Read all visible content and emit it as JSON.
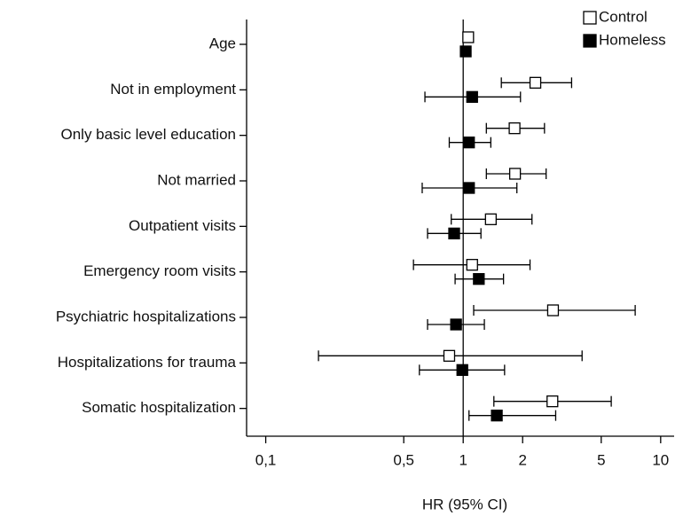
{
  "chart_data": {
    "type": "forest",
    "xlabel": "HR (95% CI)",
    "xscale": "log",
    "xlim": [
      0.08,
      11.7
    ],
    "xticks": [
      {
        "value": 0.1,
        "label": "0,1"
      },
      {
        "value": 0.5,
        "label": "0,5"
      },
      1,
      2,
      5,
      10
    ],
    "reference_line": 1,
    "legend": "upper right",
    "categories": [
      "Age",
      "Not in employment",
      "Only basic level education",
      "Not married",
      "Outpatient visits",
      "Emergency room visits",
      "Psychiatric hospitalizations",
      "Hospitalizations for trauma",
      "Somatic hospitalization"
    ],
    "series": [
      {
        "name": "Control",
        "color": "#ffffff",
        "values": [
          1.06,
          2.32,
          1.82,
          1.83,
          1.38,
          1.11,
          2.85,
          0.85,
          2.83
        ],
        "lower": [
          null,
          1.56,
          1.31,
          1.31,
          0.87,
          0.56,
          1.13,
          0.185,
          1.43
        ],
        "upper": [
          null,
          3.54,
          2.58,
          2.63,
          2.23,
          2.18,
          7.43,
          4.0,
          5.62
        ]
      },
      {
        "name": "Homeless",
        "color": "#000000",
        "values": [
          1.03,
          1.11,
          1.07,
          1.07,
          0.9,
          1.2,
          0.92,
          0.99,
          1.48
        ],
        "lower": [
          null,
          0.64,
          0.85,
          0.62,
          0.66,
          0.91,
          0.66,
          0.6,
          1.07
        ],
        "upper": [
          null,
          1.95,
          1.38,
          1.87,
          1.23,
          1.6,
          1.28,
          1.62,
          2.94
        ]
      }
    ]
  }
}
